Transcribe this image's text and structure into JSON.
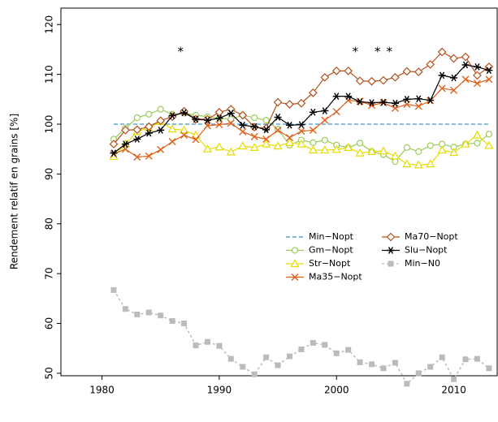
{
  "chart_data": {
    "type": "line",
    "y_label": "Rendement relatif en grains [%]",
    "x": [
      1981,
      1982,
      1983,
      1984,
      1985,
      1986,
      1987,
      1988,
      1989,
      1990,
      1991,
      1992,
      1993,
      1994,
      1995,
      1996,
      1997,
      1998,
      1999,
      2000,
      2001,
      2002,
      2003,
      2004,
      2005,
      2006,
      2007,
      2008,
      2009,
      2010,
      2011,
      2012,
      2013
    ],
    "xlim": [
      1976.5,
      2013.7
    ],
    "xticks": [
      1980,
      1990,
      2000,
      2010
    ],
    "ylim": [
      49.5,
      123.3
    ],
    "yticks": [
      50,
      60,
      70,
      80,
      90,
      100,
      110,
      120
    ],
    "legend": "center right",
    "legend_columns": 2,
    "annotations": [
      {
        "text": "*",
        "x": 1986.7,
        "y": 115
      },
      {
        "text": "*",
        "x": 2001.6,
        "y": 115
      },
      {
        "text": "*",
        "x": 2003.5,
        "y": 115
      },
      {
        "text": "*",
        "x": 2004.5,
        "y": 115
      }
    ],
    "series": [
      {
        "name": "Min−Nopt",
        "color": "#4a90b8",
        "marker": "none",
        "linestyle": "dashed",
        "values": [
          100,
          100,
          100,
          100,
          100,
          100,
          100,
          100,
          100,
          100,
          100,
          100,
          100,
          100,
          100,
          100,
          100,
          100,
          100,
          100,
          100,
          100,
          100,
          100,
          100,
          100,
          100,
          100,
          100,
          100,
          100,
          100,
          100
        ]
      },
      {
        "name": "Gm−Nopt",
        "color": "#9ccc5a",
        "marker": "o",
        "linestyle": "solid",
        "values": [
          97,
          99.2,
          101.3,
          102,
          103,
          102,
          102.2,
          101.8,
          101.5,
          101.2,
          101,
          101.8,
          101.3,
          100.8,
          99,
          95.8,
          96.8,
          96.3,
          96.8,
          95.8,
          95.3,
          96.2,
          94.5,
          93.9,
          92.5,
          95.3,
          94.5,
          95.7,
          96,
          95.4,
          96,
          96.2,
          98
        ]
      },
      {
        "name": "Str−Nopt",
        "color": "#e6dc00",
        "marker": "^",
        "linestyle": "solid",
        "values": [
          93.5,
          96,
          98.5,
          99.3,
          100.5,
          99,
          98.8,
          97.8,
          95,
          95.4,
          94.4,
          95.6,
          95.3,
          96,
          95.6,
          96.3,
          96,
          94.8,
          94.8,
          94.9,
          95.3,
          94.2,
          94.5,
          94.6,
          93.6,
          92,
          91.8,
          92,
          94.8,
          94.3,
          96,
          97.8,
          95.7
        ]
      },
      {
        "name": "Ma35−Nopt",
        "color": "#e0601a",
        "marker": "x",
        "linestyle": "solid",
        "values": [
          94,
          95,
          93.4,
          93.6,
          94.9,
          96.5,
          97.8,
          96.9,
          99.7,
          99.9,
          100.2,
          98.5,
          97.5,
          97,
          98.8,
          97.3,
          98.6,
          98.8,
          100.8,
          102.5,
          104.8,
          104.6,
          103.8,
          104.3,
          103.2,
          104,
          103.6,
          104.7,
          107.2,
          106.8,
          109,
          108.2,
          109
        ]
      },
      {
        "name": "Ma70−Nopt",
        "color": "#b5501c",
        "marker": "D",
        "linestyle": "solid",
        "values": [
          96,
          98.8,
          98.9,
          99.5,
          100.7,
          101.5,
          102.6,
          101,
          101,
          102.4,
          103,
          101.8,
          99.4,
          99.2,
          104.4,
          104,
          104.2,
          106.3,
          109.4,
          110.7,
          110.7,
          108.7,
          108.6,
          108.8,
          109.4,
          110.6,
          110.5,
          112,
          114.5,
          113.2,
          113.5,
          109.8,
          111.5
        ]
      },
      {
        "name": "Slu−Nopt",
        "color": "#000000",
        "marker": "*",
        "linestyle": "solid",
        "values": [
          94.2,
          96,
          97,
          98.2,
          98.8,
          101.7,
          102.3,
          101,
          100.8,
          101.2,
          102.2,
          99.8,
          99.5,
          98.9,
          101.4,
          99.8,
          99.9,
          102.4,
          102.7,
          105.6,
          105.6,
          104.5,
          104.3,
          104.4,
          104.2,
          105,
          105.1,
          104.8,
          109.8,
          109.3,
          111.9,
          111.5,
          110.8
        ]
      },
      {
        "name": "Min−N0",
        "color": "#bbbbbb",
        "marker": "s",
        "linestyle": "dotted",
        "values": [
          66.7,
          62.9,
          61.8,
          62.2,
          61.6,
          60.5,
          60,
          55.6,
          56.3,
          55.5,
          52.9,
          51.3,
          49.8,
          53.2,
          51.6,
          53.4,
          54.8,
          56.1,
          55.7,
          54,
          54.7,
          52.2,
          51.8,
          51,
          52.1,
          47.9,
          50,
          51.3,
          53.2,
          48.8,
          52.8,
          52.9,
          51
        ]
      }
    ]
  }
}
